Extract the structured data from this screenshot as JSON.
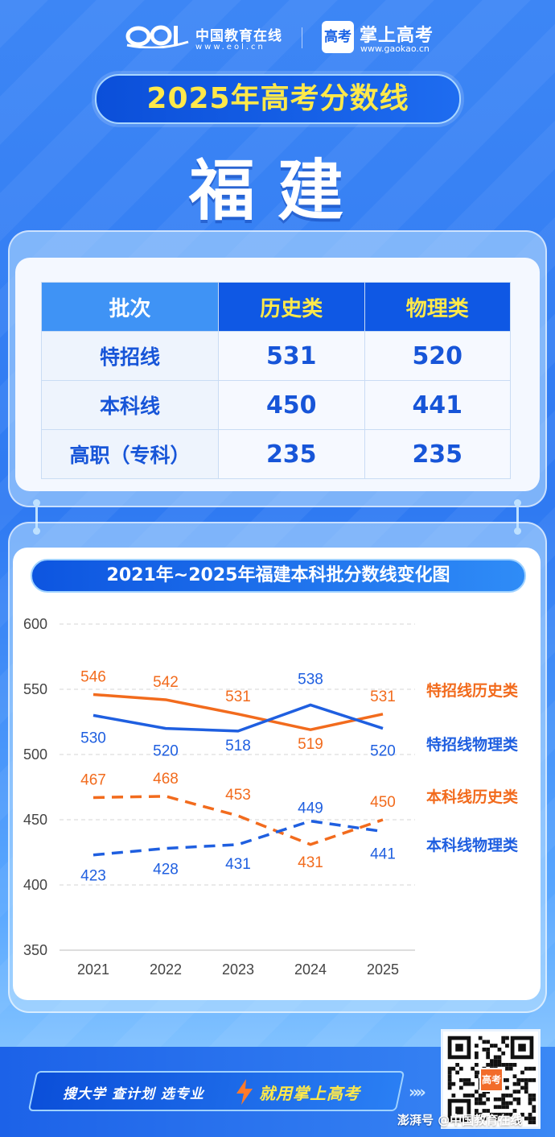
{
  "header": {
    "eol_name": "中国教育在线",
    "eol_url": "www.eol.cn",
    "gaokao_badge": "高考",
    "gaokao_name": "掌上高考",
    "gaokao_url": "www.gaokao.cn"
  },
  "banner_title": "2025年高考分数线",
  "province": "福建",
  "score_table": {
    "headers": [
      "批次",
      "历史类",
      "物理类"
    ],
    "rows": [
      {
        "batch": "特招线",
        "history": "531",
        "physics": "520"
      },
      {
        "batch": "本科线",
        "history": "450",
        "physics": "441"
      },
      {
        "batch": "高职（专科）",
        "history": "235",
        "physics": "235"
      }
    ]
  },
  "chart_data": {
    "type": "line",
    "title": "2021年~2025年福建本科批分数线变化图",
    "x": [
      "2021",
      "2022",
      "2023",
      "2024",
      "2025"
    ],
    "ylim": [
      350,
      600
    ],
    "yticks": [
      "600",
      "550",
      "500",
      "450",
      "400",
      "350"
    ],
    "grid": true,
    "legend_placement": "right",
    "series": [
      {
        "name": "特招线历史类",
        "values": [
          546,
          542,
          531,
          519,
          531
        ],
        "labels": [
          "546",
          "542",
          "531",
          "519",
          "531"
        ],
        "color": "#f26b1d",
        "dash": false
      },
      {
        "name": "特招线物理类",
        "values": [
          530,
          520,
          518,
          538,
          520
        ],
        "labels": [
          "530",
          "520",
          "518",
          "538",
          "520"
        ],
        "color": "#1f5fe0",
        "dash": false
      },
      {
        "name": "本科线历史类",
        "values": [
          467,
          468,
          453,
          431,
          450
        ],
        "labels": [
          "467",
          "468",
          "453",
          "431",
          "450"
        ],
        "color": "#f26b1d",
        "dash": true
      },
      {
        "name": "本科线物理类",
        "values": [
          423,
          428,
          431,
          449,
          441
        ],
        "labels": [
          "423",
          "428",
          "431",
          "449",
          "441"
        ],
        "color": "#1f5fe0",
        "dash": true
      }
    ]
  },
  "footer": {
    "slogan": "搜大学 查计划 选专业",
    "cta": "就用掌上高考",
    "qr_badge": "高考",
    "watermark": "澎湃号 @中国教育在线"
  },
  "colors": {
    "accent_yellow": "#ffe94a",
    "primary_blue": "#0f58e4",
    "orange": "#f26b1d"
  }
}
